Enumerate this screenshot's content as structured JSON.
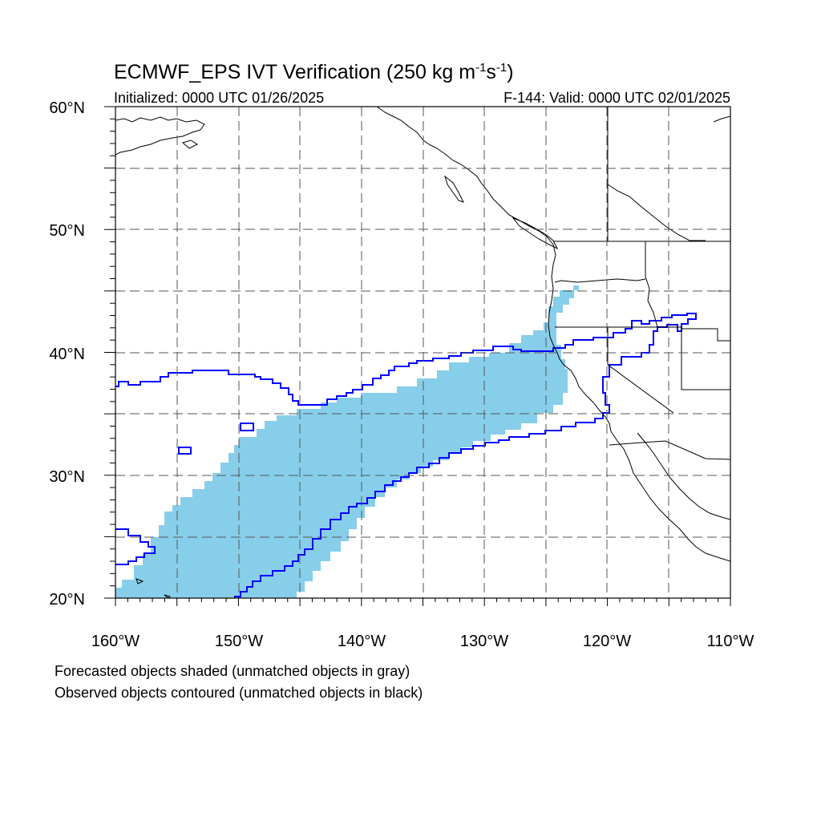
{
  "title": {
    "main": "ECMWF_EPS IVT Verification (250 kg m",
    "sup1": "-1",
    "mid": "s",
    "sup2": "-1",
    "close": ")"
  },
  "subtitle_left": "Initialized: 0000 UTC 01/26/2025",
  "subtitle_right": "F-144: Valid: 0000 UTC 02/01/2025",
  "axes": {
    "lon_labels": [
      "160°W",
      "150°W",
      "140°W",
      "130°W",
      "120°W",
      "110°W"
    ],
    "lat_labels": [
      "20°N",
      "30°N",
      "40°N",
      "50°N",
      "60°N"
    ]
  },
  "legend_notes": [
    "Forecasted objects shaded (unmatched objects in gray)",
    "Observed objects contoured (unmatched objects in black)"
  ],
  "colors": {
    "forecast_fill": "#87ceeb",
    "observed_contour": "#0000ff",
    "coastline": "#000000",
    "grid": "#555555"
  }
}
